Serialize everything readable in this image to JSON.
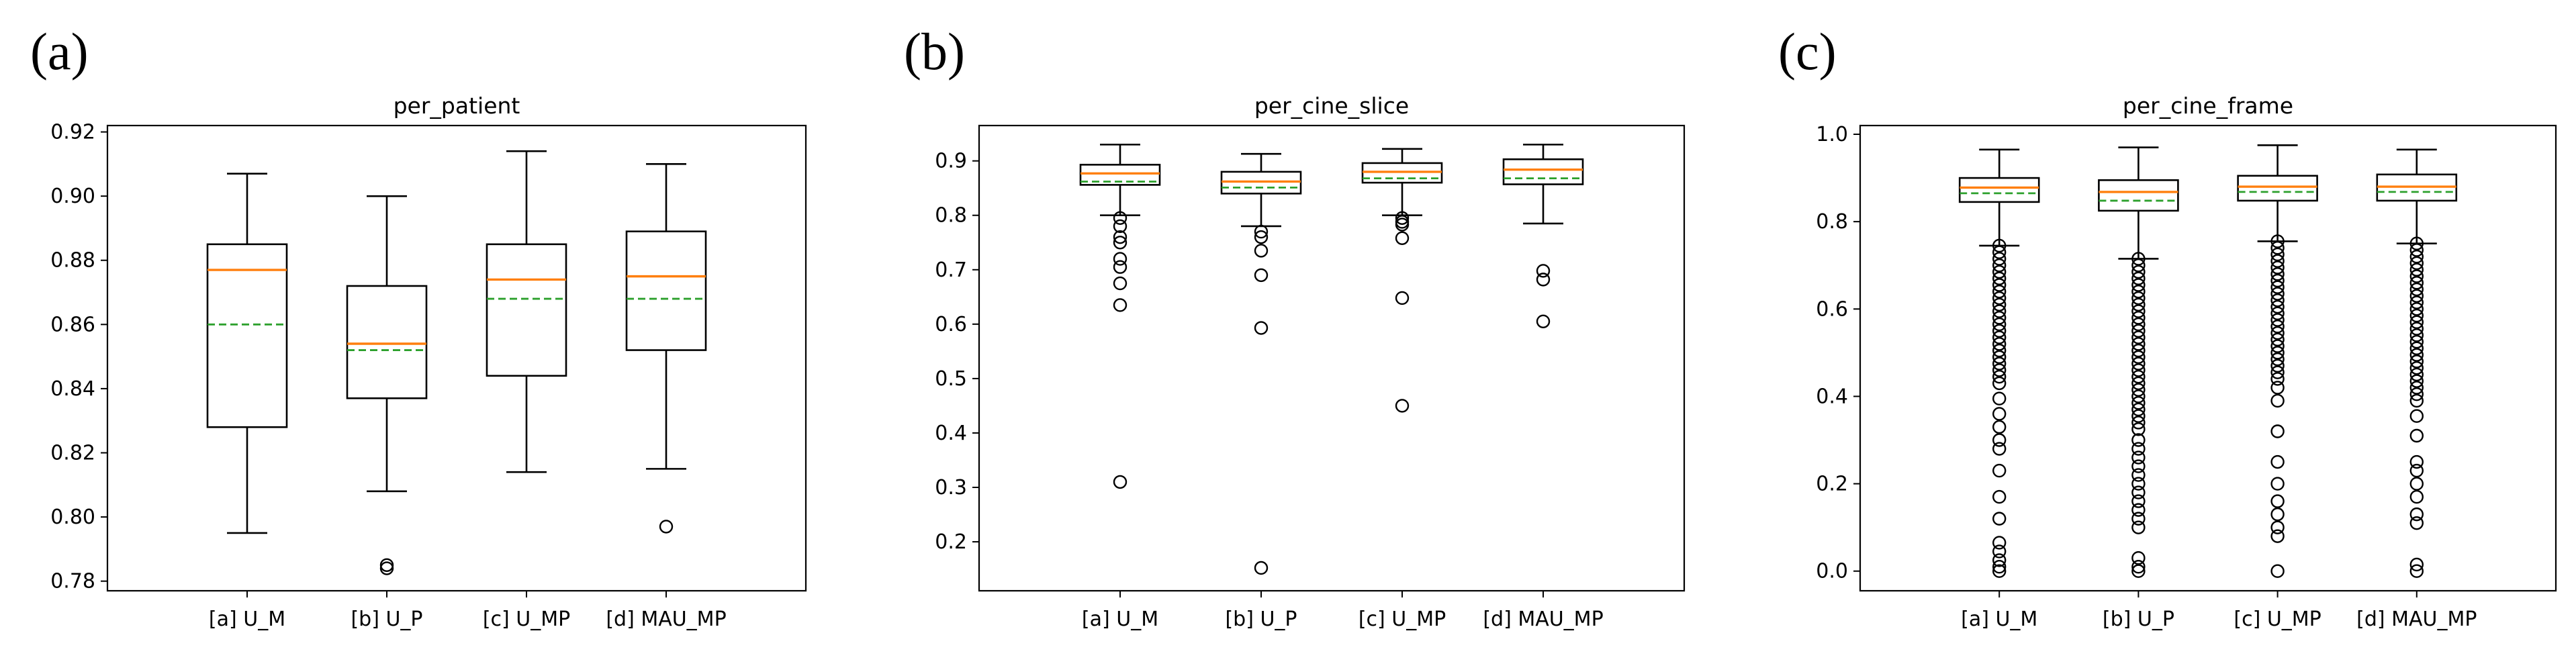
{
  "figure": {
    "colors": {
      "median": "#ff7f0e",
      "mean": "#2ca02c",
      "frame": "#000000"
    }
  },
  "chart_data": [
    {
      "type": "box",
      "panel_label": "(a)",
      "title": "per_patient",
      "xlabel": "",
      "ylabel": "",
      "categories": [
        "[a] U_M",
        "[b] U_P",
        "[c] U_MP",
        "[d] MAU_MP"
      ],
      "ylim": [
        0.777,
        0.922
      ],
      "yticks": [
        0.78,
        0.8,
        0.82,
        0.84,
        0.86,
        0.88,
        0.9,
        0.92
      ],
      "ytick_labels": [
        "0.78",
        "0.80",
        "0.82",
        "0.84",
        "0.86",
        "0.88",
        "0.90",
        "0.92"
      ],
      "grid": false,
      "boxes": [
        {
          "whisker_low": 0.795,
          "q1": 0.828,
          "median": 0.877,
          "mean": 0.86,
          "q3": 0.885,
          "whisker_high": 0.907,
          "outliers": []
        },
        {
          "whisker_low": 0.808,
          "q1": 0.837,
          "median": 0.854,
          "mean": 0.852,
          "q3": 0.872,
          "whisker_high": 0.9,
          "outliers": [
            0.785,
            0.784
          ]
        },
        {
          "whisker_low": 0.814,
          "q1": 0.844,
          "median": 0.874,
          "mean": 0.868,
          "q3": 0.885,
          "whisker_high": 0.914,
          "outliers": []
        },
        {
          "whisker_low": 0.815,
          "q1": 0.852,
          "median": 0.875,
          "mean": 0.868,
          "q3": 0.889,
          "whisker_high": 0.91,
          "outliers": [
            0.797
          ]
        }
      ]
    },
    {
      "type": "box",
      "panel_label": "(b)",
      "title": "per_cine_slice",
      "xlabel": "",
      "ylabel": "",
      "categories": [
        "[a] U_M",
        "[b] U_P",
        "[c] U_MP",
        "[d] MAU_MP"
      ],
      "ylim": [
        0.11,
        0.965
      ],
      "yticks": [
        0.2,
        0.3,
        0.4,
        0.5,
        0.6,
        0.7,
        0.8,
        0.9
      ],
      "ytick_labels": [
        "0.2",
        "0.3",
        "0.4",
        "0.5",
        "0.6",
        "0.7",
        "0.8",
        "0.9"
      ],
      "grid": false,
      "boxes": [
        {
          "whisker_low": 0.8,
          "q1": 0.856,
          "median": 0.877,
          "mean": 0.862,
          "q3": 0.893,
          "whisker_high": 0.93,
          "outliers": [
            0.795,
            0.78,
            0.76,
            0.75,
            0.72,
            0.705,
            0.675,
            0.635,
            0.31
          ]
        },
        {
          "whisker_low": 0.78,
          "q1": 0.84,
          "median": 0.862,
          "mean": 0.851,
          "q3": 0.88,
          "whisker_high": 0.913,
          "outliers": [
            0.77,
            0.76,
            0.735,
            0.69,
            0.593,
            0.152
          ]
        },
        {
          "whisker_low": 0.8,
          "q1": 0.86,
          "median": 0.88,
          "mean": 0.868,
          "q3": 0.896,
          "whisker_high": 0.922,
          "outliers": [
            0.795,
            0.788,
            0.783,
            0.758,
            0.648,
            0.45
          ]
        },
        {
          "whisker_low": 0.785,
          "q1": 0.857,
          "median": 0.884,
          "mean": 0.868,
          "q3": 0.903,
          "whisker_high": 0.93,
          "outliers": [
            0.698,
            0.682,
            0.605
          ]
        }
      ]
    },
    {
      "type": "box",
      "panel_label": "(c)",
      "title": "per_cine_frame",
      "xlabel": "",
      "ylabel": "",
      "categories": [
        "[a] U_M",
        "[b] U_P",
        "[c] U_MP",
        "[d] MAU_MP"
      ],
      "ylim": [
        -0.045,
        1.02
      ],
      "yticks": [
        0.0,
        0.2,
        0.4,
        0.6,
        0.8,
        1.0
      ],
      "ytick_labels": [
        "0.0",
        "0.2",
        "0.4",
        "0.6",
        "0.8",
        "1.0"
      ],
      "grid": false,
      "boxes": [
        {
          "whisker_low": 0.745,
          "q1": 0.845,
          "median": 0.878,
          "mean": 0.865,
          "q3": 0.9,
          "whisker_high": 0.965,
          "outliers": [
            0.745,
            0.73,
            0.715,
            0.7,
            0.685,
            0.67,
            0.655,
            0.64,
            0.625,
            0.61,
            0.595,
            0.58,
            0.565,
            0.55,
            0.535,
            0.52,
            0.505,
            0.49,
            0.475,
            0.46,
            0.445,
            0.43,
            0.395,
            0.36,
            0.33,
            0.3,
            0.28,
            0.23,
            0.17,
            0.12,
            0.065,
            0.045,
            0.025,
            0.01,
            0.0
          ]
        },
        {
          "whisker_low": 0.715,
          "q1": 0.825,
          "median": 0.868,
          "mean": 0.848,
          "q3": 0.895,
          "whisker_high": 0.97,
          "outliers": [
            0.715,
            0.7,
            0.685,
            0.67,
            0.655,
            0.64,
            0.625,
            0.61,
            0.595,
            0.58,
            0.565,
            0.55,
            0.535,
            0.52,
            0.505,
            0.49,
            0.475,
            0.46,
            0.445,
            0.43,
            0.415,
            0.4,
            0.385,
            0.37,
            0.355,
            0.34,
            0.325,
            0.3,
            0.28,
            0.26,
            0.24,
            0.22,
            0.2,
            0.18,
            0.16,
            0.14,
            0.12,
            0.1,
            0.03,
            0.01,
            0.0
          ]
        },
        {
          "whisker_low": 0.755,
          "q1": 0.848,
          "median": 0.88,
          "mean": 0.868,
          "q3": 0.905,
          "whisker_high": 0.975,
          "outliers": [
            0.755,
            0.74,
            0.725,
            0.71,
            0.695,
            0.68,
            0.665,
            0.65,
            0.635,
            0.62,
            0.605,
            0.59,
            0.575,
            0.56,
            0.545,
            0.53,
            0.515,
            0.5,
            0.485,
            0.47,
            0.455,
            0.44,
            0.42,
            0.39,
            0.32,
            0.25,
            0.2,
            0.16,
            0.13,
            0.1,
            0.08,
            0.0
          ]
        },
        {
          "whisker_low": 0.75,
          "q1": 0.848,
          "median": 0.88,
          "mean": 0.868,
          "q3": 0.908,
          "whisker_high": 0.965,
          "outliers": [
            0.75,
            0.735,
            0.72,
            0.705,
            0.69,
            0.675,
            0.66,
            0.645,
            0.63,
            0.615,
            0.6,
            0.585,
            0.57,
            0.555,
            0.54,
            0.525,
            0.51,
            0.495,
            0.48,
            0.465,
            0.45,
            0.435,
            0.42,
            0.405,
            0.39,
            0.355,
            0.31,
            0.25,
            0.23,
            0.2,
            0.17,
            0.13,
            0.11,
            0.015,
            0.0
          ]
        }
      ]
    }
  ]
}
